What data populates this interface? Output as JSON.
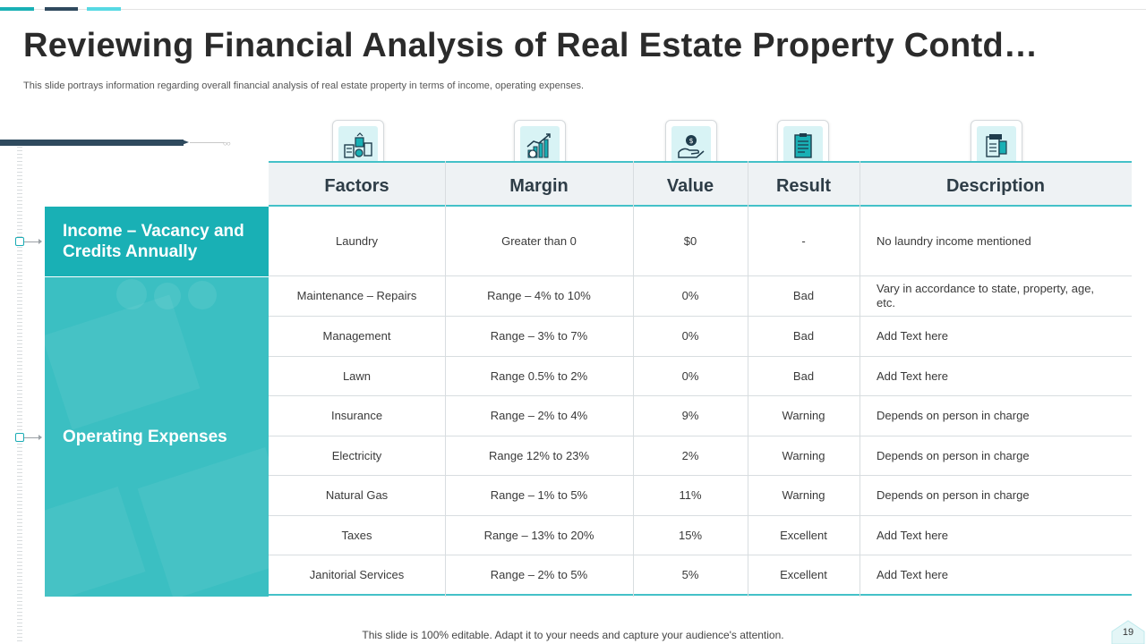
{
  "slide": {
    "title": "Reviewing Financial Analysis of Real Estate Property Contd…",
    "subtitle": "This slide portrays information regarding overall financial analysis of real estate property in terms of income, operating expenses.",
    "footer": "This slide is 100% editable. Adapt it to your needs and capture your audience's attention.",
    "page_number": "19"
  },
  "colors": {
    "accent_teal": "#19b0b5",
    "accent_light_teal": "#44c1c8",
    "dark_navy": "#2f4a5e",
    "top_bar_colors": [
      "#19b0b5",
      "#2f4a5e",
      "#57d9e3"
    ]
  },
  "categories": [
    {
      "label": "Income – Vacancy and Credits Annually"
    },
    {
      "label": "Operating Expenses"
    }
  ],
  "table": {
    "headers": [
      "Factors",
      "Margin",
      "Value",
      "Result",
      "Description"
    ],
    "header_icons": [
      "factors-icon",
      "margin-chart-icon",
      "value-hand-coin-icon",
      "result-clipboard-icon",
      "description-document-icon"
    ],
    "rows": [
      {
        "factor": "Laundry",
        "margin": "Greater than 0",
        "value": "$0",
        "result": "-",
        "description": "No laundry income mentioned"
      },
      {
        "factor": "Maintenance – Repairs",
        "margin": "Range – 4% to 10%",
        "value": "0%",
        "result": "Bad",
        "description": "Vary in accordance to state, property, age, etc."
      },
      {
        "factor": "Management",
        "margin": "Range – 3% to 7%",
        "value": "0%",
        "result": "Bad",
        "description": "Add Text here"
      },
      {
        "factor": "Lawn",
        "margin": "Range 0.5% to 2%",
        "value": "0%",
        "result": "Bad",
        "description": "Add Text here"
      },
      {
        "factor": "Insurance",
        "margin": "Range – 2% to 4%",
        "value": "9%",
        "result": "Warning",
        "description": "Depends on person in charge"
      },
      {
        "factor": "Electricity",
        "margin": "Range 12% to 23%",
        "value": "2%",
        "result": "Warning",
        "description": "Depends on person in charge"
      },
      {
        "factor": "Natural Gas",
        "margin": "Range – 1% to 5%",
        "value": "11%",
        "result": "Warning",
        "description": "Depends on person in charge"
      },
      {
        "factor": "Taxes",
        "margin": "Range – 13% to 20%",
        "value": "15%",
        "result": "Excellent",
        "description": "Add Text here"
      },
      {
        "factor": "Janitorial Services",
        "margin": "Range – 2% to 5%",
        "value": "5%",
        "result": "Excellent",
        "description": "Add Text here"
      }
    ]
  }
}
